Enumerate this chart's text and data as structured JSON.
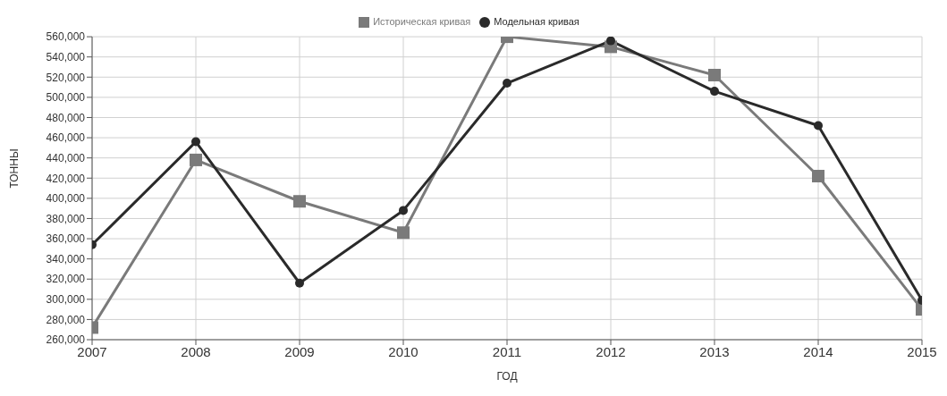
{
  "chart_data": {
    "type": "line",
    "xlabel": "ГОД",
    "ylabel": "ТОННЫ",
    "x": [
      2007,
      2008,
      2009,
      2010,
      2011,
      2012,
      2013,
      2014,
      2015
    ],
    "xlim": [
      2007,
      2015
    ],
    "xticks": [
      2007,
      2008,
      2009,
      2010,
      2011,
      2012,
      2013,
      2014,
      2015
    ],
    "ylim": [
      260000,
      560000
    ],
    "yticks": [
      {
        "value": 260000,
        "label": "260,000"
      },
      {
        "value": 280000,
        "label": "280,000"
      },
      {
        "value": 300000,
        "label": "300,000"
      },
      {
        "value": 320000,
        "label": "320,000"
      },
      {
        "value": 340000,
        "label": "340,000"
      },
      {
        "value": 360000,
        "label": "360,000"
      },
      {
        "value": 380000,
        "label": "380,000"
      },
      {
        "value": 400000,
        "label": "400,000"
      },
      {
        "value": 420000,
        "label": "420,000"
      },
      {
        "value": 440000,
        "label": "440,000"
      },
      {
        "value": 460000,
        "label": "460,000"
      },
      {
        "value": 480000,
        "label": "480,000"
      },
      {
        "value": 500000,
        "label": "500,000"
      },
      {
        "value": 520000,
        "label": "520,000"
      },
      {
        "value": 540000,
        "label": "540,000"
      },
      {
        "value": 560000,
        "label": "560,000"
      }
    ],
    "grid": true,
    "legend": "top",
    "line_style": "solid",
    "series": [
      {
        "name": "Историческая кривая",
        "color": "#7a7a7a",
        "marker": "square",
        "values": [
          272000,
          438000,
          397000,
          366000,
          560000,
          550000,
          522000,
          422000,
          290000
        ]
      },
      {
        "name": "Модельная кривая",
        "color": "#2a2a2a",
        "marker": "circle",
        "values": [
          354000,
          456000,
          316000,
          388000,
          514000,
          556000,
          506000,
          472000,
          299000
        ]
      }
    ]
  }
}
